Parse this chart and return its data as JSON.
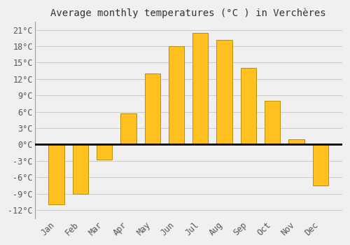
{
  "title": "Average monthly temperatures (°C ) in Verchères",
  "months": [
    "Jan",
    "Feb",
    "Mar",
    "Apr",
    "May",
    "Jun",
    "Jul",
    "Aug",
    "Sep",
    "Oct",
    "Nov",
    "Dec"
  ],
  "temperatures": [
    -11,
    -9,
    -2.7,
    5.7,
    13,
    18,
    20.5,
    19.2,
    14,
    8,
    1,
    -7.5
  ],
  "bar_color": "#FFC020",
  "bar_edge_color": "#B8900A",
  "background_color": "#F0F0F0",
  "plot_bg_color": "#F0F0F0",
  "grid_color": "#CCCCCC",
  "zero_line_color": "#000000",
  "yticks": [
    -12,
    -9,
    -6,
    -3,
    0,
    3,
    6,
    9,
    12,
    15,
    18,
    21
  ],
  "ylim": [
    -13.5,
    22.5
  ],
  "title_fontsize": 10,
  "tick_fontsize": 8.5,
  "bar_width": 0.65
}
